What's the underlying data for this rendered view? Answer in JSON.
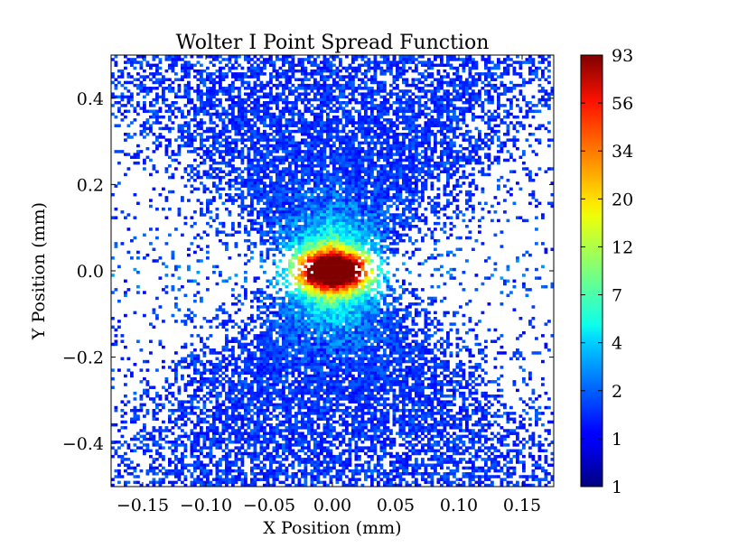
{
  "chart_data": {
    "type": "heatmap",
    "title": "Wolter I Point Spread Function",
    "xlabel": "X Position (mm)",
    "ylabel": "Y Position (mm)",
    "xlim": [
      -0.175,
      0.175
    ],
    "ylim": [
      -0.5,
      0.5
    ],
    "x_ticks": [
      -0.15,
      -0.1,
      -0.05,
      0.0,
      0.05,
      0.1,
      0.15
    ],
    "x_tick_labels": [
      "−0.15",
      "−0.10",
      "−0.05",
      "0.00",
      "0.05",
      "0.10",
      "0.15"
    ],
    "y_ticks": [
      0.4,
      0.2,
      0.0,
      -0.2,
      -0.4
    ],
    "y_tick_labels": [
      "0.4",
      "0.2",
      "0.0",
      "−0.2",
      "−0.4"
    ],
    "colorbar": {
      "scale": "log",
      "range": [
        1,
        93
      ],
      "colormap": "jet",
      "tick_labels": [
        "93",
        "56",
        "34",
        "20",
        "12",
        "7",
        "4",
        "2",
        "1",
        "1"
      ]
    },
    "description_values": {
      "peak_counts": 93,
      "peak_location": [
        0.0,
        0.0
      ]
    }
  }
}
